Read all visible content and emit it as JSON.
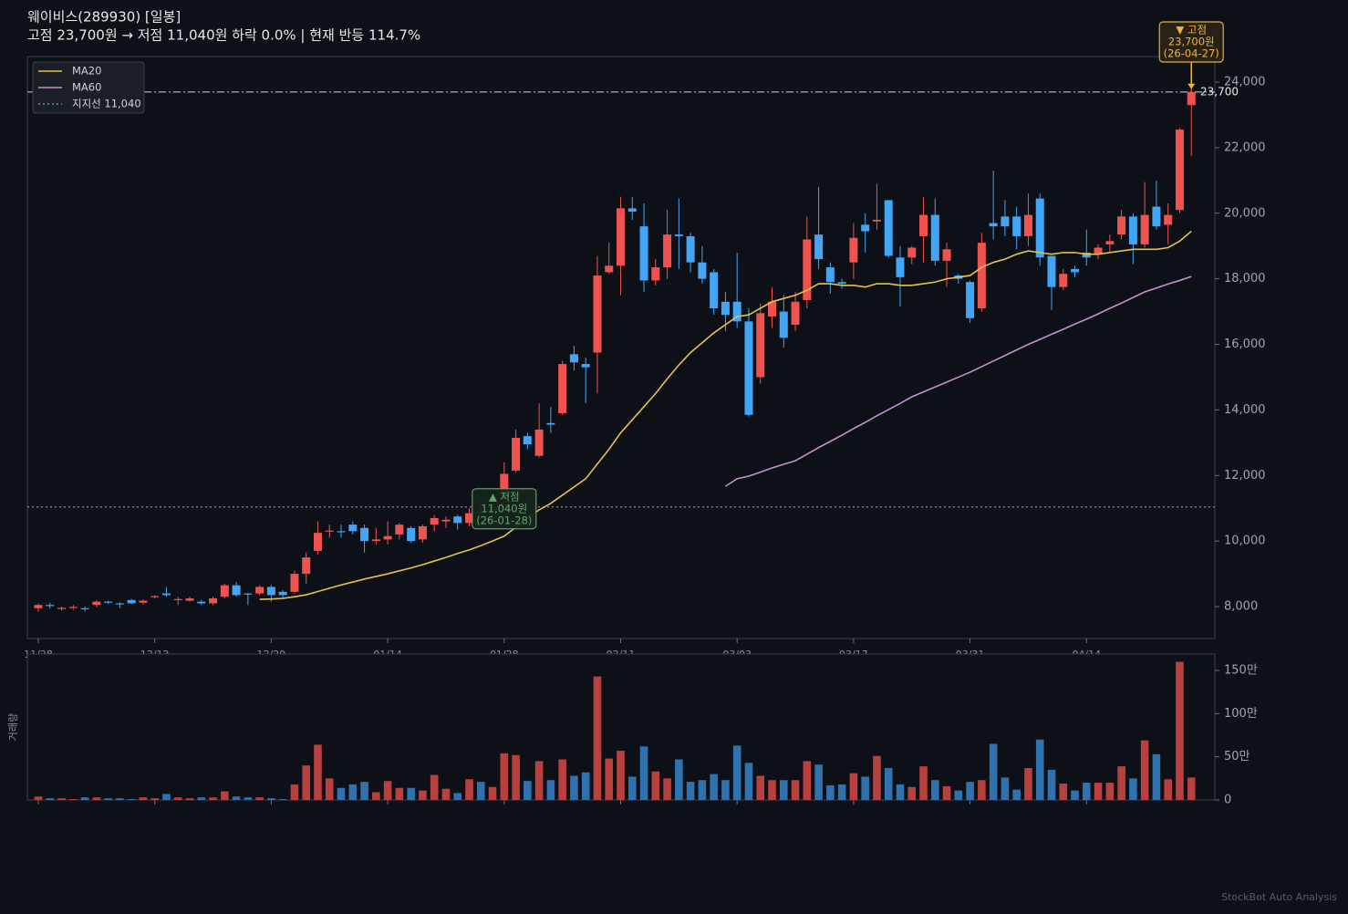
{
  "chart_data": {
    "type": "candlestick",
    "title": "웨이비스(289930)  [일봉]",
    "subtitle": "고점 23,700원 → 저점 11,040원  하락 0.0%  |  현재 반등 114.7%",
    "categories": [
      "11/28",
      null,
      null,
      null,
      null,
      null,
      null,
      null,
      null,
      null,
      "12/12",
      null,
      null,
      null,
      null,
      null,
      null,
      null,
      null,
      null,
      "12/29",
      null,
      null,
      null,
      null,
      null,
      null,
      null,
      null,
      null,
      "01/14",
      null,
      null,
      null,
      null,
      null,
      null,
      null,
      null,
      null,
      "01/28",
      null,
      null,
      null,
      null,
      null,
      null,
      null,
      null,
      null,
      "02/11",
      null,
      null,
      null,
      null,
      null,
      null,
      null,
      null,
      null,
      "03/03",
      null,
      null,
      null,
      null,
      null,
      null,
      null,
      null,
      null,
      "03/17",
      null,
      null,
      null,
      null,
      null,
      null,
      null,
      null,
      null,
      "03/31",
      null,
      null,
      null,
      null,
      null,
      null,
      null,
      null,
      null,
      "04/14",
      null,
      null,
      null,
      null,
      null,
      null,
      null,
      null,
      null
    ],
    "open": [
      7950,
      8050,
      7930,
      7960,
      7950,
      8050,
      8150,
      8100,
      8200,
      8120,
      8300,
      8400,
      8200,
      8180,
      8150,
      8100,
      8300,
      8650,
      8400,
      8400,
      8600,
      8450,
      8450,
      9000,
      9700,
      10300,
      10300,
      10500,
      10400,
      10000,
      10050,
      10200,
      10400,
      10050,
      10500,
      10600,
      10750,
      10550,
      10900,
      10900,
      11300,
      12150,
      13200,
      12600,
      13600,
      13900,
      15700,
      15400,
      15750,
      18200,
      18400,
      20150,
      19600,
      17950,
      18350,
      19350,
      19300,
      18500,
      18200,
      17300,
      17300,
      16700,
      15000,
      16850,
      17000,
      16600,
      17350,
      19350,
      18350,
      17900,
      18500,
      19650,
      19750,
      20400,
      18650,
      18650,
      19300,
      19950,
      18550,
      18100,
      17900,
      17100,
      19700,
      19900,
      19900,
      19300,
      20450,
      18700,
      17750,
      18300,
      18800,
      18750,
      19050,
      19350,
      19900,
      19050,
      20200,
      19650,
      20100,
      23300
    ],
    "high": [
      8100,
      8120,
      8000,
      8050,
      8000,
      8200,
      8180,
      8130,
      8230,
      8220,
      8350,
      8600,
      8300,
      8300,
      8200,
      8300,
      8700,
      8750,
      8420,
      8650,
      8650,
      8500,
      9100,
      9650,
      10600,
      10500,
      10500,
      10600,
      10500,
      10400,
      10600,
      10550,
      10450,
      10500,
      10800,
      10750,
      10800,
      11000,
      11100,
      11300,
      12400,
      13400,
      13300,
      14200,
      14100,
      15500,
      15950,
      15600,
      18700,
      19100,
      20500,
      20500,
      20300,
      18600,
      20100,
      20450,
      19400,
      19000,
      18300,
      17600,
      18800,
      17100,
      17250,
      17750,
      17500,
      17600,
      19900,
      20800,
      18500,
      18000,
      19700,
      20000,
      20900,
      20400,
      19000,
      19000,
      20500,
      20450,
      19100,
      18150,
      17950,
      19400,
      21300,
      20400,
      20200,
      20600,
      20600,
      18700,
      18300,
      18400,
      19500,
      19050,
      19350,
      20100,
      20000,
      20950,
      21000,
      20300,
      22600,
      24000
    ],
    "low": [
      7850,
      7950,
      7880,
      7900,
      7850,
      7980,
      8080,
      7950,
      8080,
      8060,
      8250,
      8300,
      8050,
      8150,
      8050,
      8050,
      8250,
      8300,
      8050,
      8350,
      8150,
      8250,
      8400,
      8700,
      9600,
      10100,
      10100,
      10200,
      9650,
      9900,
      9900,
      10050,
      9950,
      9950,
      10300,
      10400,
      10350,
      10450,
      10700,
      10700,
      11040,
      12100,
      12800,
      12550,
      13300,
      13850,
      15200,
      14200,
      14500,
      18150,
      17500,
      19800,
      17600,
      17800,
      18000,
      18300,
      18200,
      17850,
      16900,
      16400,
      16500,
      13800,
      14800,
      16500,
      15900,
      16400,
      17100,
      18300,
      17550,
      17700,
      18000,
      18800,
      19500,
      18650,
      17150,
      18450,
      18500,
      18400,
      17750,
      17850,
      16650,
      17000,
      19200,
      19300,
      18900,
      19000,
      18400,
      17050,
      17650,
      18050,
      18400,
      18600,
      18800,
      19200,
      18450,
      18950,
      19500,
      19050,
      20000,
      21750
    ],
    "close": [
      8050,
      8030,
      7960,
      7990,
      7940,
      8150,
      8120,
      8090,
      8100,
      8180,
      8320,
      8350,
      8230,
      8250,
      8100,
      8250,
      8650,
      8350,
      8380,
      8600,
      8350,
      8350,
      9000,
      9500,
      10250,
      10320,
      10280,
      10300,
      10000,
      10050,
      10150,
      10500,
      10000,
      10450,
      10700,
      10650,
      10550,
      10850,
      10850,
      11050,
      12050,
      13150,
      12950,
      13400,
      13550,
      15400,
      15450,
      15300,
      18100,
      18400,
      20150,
      20050,
      17950,
      18350,
      19350,
      19300,
      18500,
      18000,
      17100,
      16900,
      16700,
      13850,
      16950,
      17300,
      16200,
      17300,
      19200,
      18600,
      17900,
      17850,
      19250,
      19450,
      19800,
      18700,
      18050,
      18950,
      19950,
      18550,
      18900,
      18000,
      16800,
      19100,
      19600,
      19600,
      19300,
      19950,
      18650,
      17750,
      18150,
      18200,
      18650,
      18950,
      19150,
      19900,
      19050,
      19950,
      19600,
      19950,
      22550,
      23700
    ],
    "up_color": "#ef5350",
    "down_color": "#42a5f5",
    "series": [
      {
        "name": "MA20",
        "color": "#e6c04f",
        "values": [
          null,
          null,
          null,
          null,
          null,
          null,
          null,
          null,
          null,
          null,
          null,
          null,
          null,
          null,
          null,
          null,
          null,
          null,
          null,
          8220,
          8230,
          8250,
          8300,
          8360,
          8460,
          8560,
          8660,
          8750,
          8840,
          8920,
          9000,
          9090,
          9180,
          9280,
          9390,
          9500,
          9620,
          9730,
          9860,
          10000,
          10150,
          10420,
          10700,
          10950,
          11150,
          11400,
          11650,
          11900,
          12350,
          12800,
          13300,
          13700,
          14100,
          14500,
          14950,
          15370,
          15750,
          16050,
          16350,
          16600,
          16850,
          16900,
          17100,
          17300,
          17400,
          17500,
          17650,
          17850,
          17850,
          17800,
          17800,
          17750,
          17850,
          17850,
          17800,
          17800,
          17850,
          17900,
          18000,
          18050,
          18100,
          18350,
          18500,
          18600,
          18750,
          18850,
          18800,
          18750,
          18800,
          18800,
          18750,
          18750,
          18800,
          18850,
          18900,
          18900,
          18900,
          18950,
          19150,
          19450
        ]
      },
      {
        "name": "MA60",
        "color": "#c58fd0",
        "values": [
          null,
          null,
          null,
          null,
          null,
          null,
          null,
          null,
          null,
          null,
          null,
          null,
          null,
          null,
          null,
          null,
          null,
          null,
          null,
          null,
          null,
          null,
          null,
          null,
          null,
          null,
          null,
          null,
          null,
          null,
          null,
          null,
          null,
          null,
          null,
          null,
          null,
          null,
          null,
          null,
          null,
          null,
          null,
          null,
          null,
          null,
          null,
          null,
          null,
          null,
          null,
          null,
          null,
          null,
          null,
          null,
          null,
          null,
          null,
          11670,
          11900,
          11980,
          12100,
          12230,
          12340,
          12450,
          12650,
          12850,
          13040,
          13230,
          13430,
          13620,
          13820,
          14010,
          14200,
          14400,
          14550,
          14700,
          14850,
          15000,
          15150,
          15320,
          15490,
          15660,
          15830,
          16000,
          16150,
          16310,
          16460,
          16620,
          16770,
          16930,
          17100,
          17260,
          17430,
          17600,
          17720,
          17840,
          17950,
          18070
        ]
      }
    ],
    "support": {
      "name": "지지선 11,040",
      "value": 11040,
      "color": "#5aa86a"
    },
    "peak_line": {
      "value": 23700,
      "label": "23,700",
      "color": "#9aa0a6"
    },
    "annotations": [
      {
        "kind": "peak",
        "value": 23700,
        "lines": [
          "▼ 고점",
          "23,700원",
          "(26-04-27)"
        ],
        "color": "#f0b43c"
      },
      {
        "kind": "trough",
        "value": 11040,
        "lines": [
          "▲ 저점",
          "11,040원",
          "(26-01-28)"
        ],
        "color": "#5aa86a"
      }
    ],
    "ylim": [
      7026,
      24780
    ],
    "yticks": [
      {
        "value": 8000,
        "label": "8,000"
      },
      {
        "value": 10000,
        "label": "10,000"
      },
      {
        "value": 12000,
        "label": "12,000"
      },
      {
        "value": 14000,
        "label": "14,000"
      },
      {
        "value": 16000,
        "label": "16,000"
      },
      {
        "value": 18000,
        "label": "18,000"
      },
      {
        "value": 20000,
        "label": "20,000"
      },
      {
        "value": 22000,
        "label": "22,000"
      },
      {
        "value": 24000,
        "label": "24,000"
      }
    ],
    "legend": "upper left",
    "volume": {
      "label": "거래량",
      "values": [
        4,
        2,
        2,
        1,
        3,
        3,
        2,
        2,
        1,
        3,
        2,
        7,
        3,
        2,
        3,
        3,
        10,
        4,
        3,
        3,
        2,
        1,
        18,
        40,
        64,
        25,
        14,
        18,
        21,
        9,
        22,
        14,
        14,
        11,
        29,
        13,
        8,
        24,
        21,
        15,
        54,
        52,
        22,
        45,
        23,
        47,
        28,
        32,
        143,
        48,
        57,
        27,
        62,
        33,
        25,
        47,
        21,
        23,
        30,
        23,
        63,
        43,
        28,
        23,
        23,
        23,
        45,
        41,
        17,
        18,
        31,
        27,
        51,
        37,
        18,
        15,
        39,
        23,
        16,
        11,
        21,
        23,
        65,
        26,
        12,
        37,
        70,
        35,
        19,
        11,
        20,
        20,
        20,
        39,
        25,
        69,
        53,
        24,
        160,
        26
      ],
      "ylim": [
        0,
        169
      ],
      "yticks": [
        0,
        {
          "value": 50,
          "label": "50만"
        },
        {
          "value": 100,
          "label": "100만"
        },
        {
          "value": 150,
          "label": "150만"
        }
      ]
    }
  },
  "footer": "StockBot Auto Analysis"
}
